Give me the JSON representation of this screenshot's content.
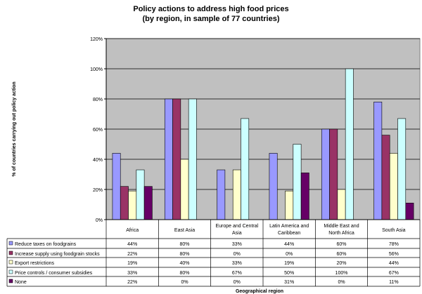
{
  "chart_data": {
    "type": "bar",
    "title": "Policy actions to address high food prices",
    "subtitle": "(by region, in sample of 77 countries)",
    "xlabel": "Geographical region",
    "ylabel": "% of countries carrying out policy action",
    "ylim": [
      0,
      120
    ],
    "yticks": [
      "0%",
      "20%",
      "40%",
      "60%",
      "80%",
      "100%",
      "120%"
    ],
    "grid": true,
    "legend": "table-below",
    "categories": [
      [
        "Africa"
      ],
      [
        "East Asia"
      ],
      [
        "Europe and Central",
        "Asia"
      ],
      [
        "Latin America and",
        "Caribbean"
      ],
      [
        "Middle East and",
        "North Africa"
      ],
      [
        "South Asia"
      ]
    ],
    "series": [
      {
        "name": "Reduce taxes on foodgrains",
        "color": "#9999ff",
        "values": [
          44,
          80,
          33,
          44,
          60,
          78
        ],
        "labels": [
          "44%",
          "80%",
          "33%",
          "44%",
          "60%",
          "78%"
        ]
      },
      {
        "name": "Increase supply using foodgrain stocks",
        "color": "#993366",
        "values": [
          22,
          80,
          0,
          0,
          60,
          56
        ],
        "labels": [
          "22%",
          "80%",
          "0%",
          "0%",
          "60%",
          "56%"
        ]
      },
      {
        "name": "Export restrictions",
        "color": "#ffffcc",
        "values": [
          19,
          40,
          33,
          19,
          20,
          44
        ],
        "labels": [
          "19%",
          "40%",
          "33%",
          "19%",
          "20%",
          "44%"
        ]
      },
      {
        "name": "Price controls / consumer subsidies",
        "color": "#ccffff",
        "values": [
          33,
          80,
          67,
          50,
          100,
          67
        ],
        "labels": [
          "33%",
          "80%",
          "67%",
          "50%",
          "100%",
          "67%"
        ]
      },
      {
        "name": "None",
        "color": "#660066",
        "values": [
          22,
          0,
          0,
          31,
          0,
          11
        ],
        "labels": [
          "22%",
          "0%",
          "0%",
          "31%",
          "0%",
          "11%"
        ]
      }
    ]
  }
}
